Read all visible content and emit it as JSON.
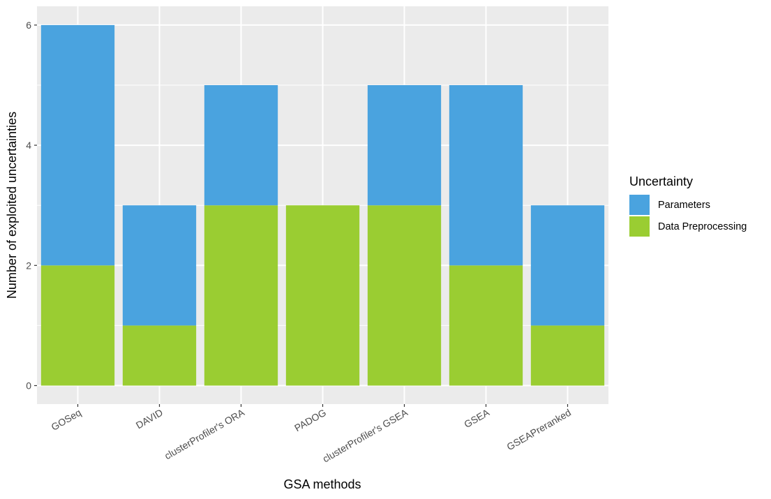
{
  "chart_data": {
    "type": "bar",
    "stacked": true,
    "title": "",
    "xlabel": "GSA methods",
    "ylabel": "Number of exploited uncertainties",
    "categories": [
      "GOSeq",
      "DAVID",
      "clusterProfiler's ORA",
      "PADOG",
      "clusterProfiler's GSEA",
      "GSEA",
      "GSEAPreranked"
    ],
    "series": [
      {
        "name": "Data Preprocessing",
        "values": [
          2,
          1,
          3,
          3,
          3,
          2,
          1
        ],
        "color": "#9acd32"
      },
      {
        "name": "Parameters",
        "values": [
          4,
          2,
          2,
          0,
          2,
          3,
          2
        ],
        "color": "#4aa3df"
      }
    ],
    "ylim": [
      0,
      6.3
    ],
    "yticks": [
      0,
      2,
      4,
      6
    ],
    "ytick_labels": [
      "0",
      "2",
      "4",
      "6"
    ],
    "grid": true,
    "panel_background": "#ebebeb",
    "legend": {
      "title": "Uncertainty",
      "placement": "right",
      "entries": [
        {
          "label": "Parameters",
          "color": "#4aa3df"
        },
        {
          "label": "Data Preprocessing",
          "color": "#9acd32"
        }
      ]
    }
  }
}
